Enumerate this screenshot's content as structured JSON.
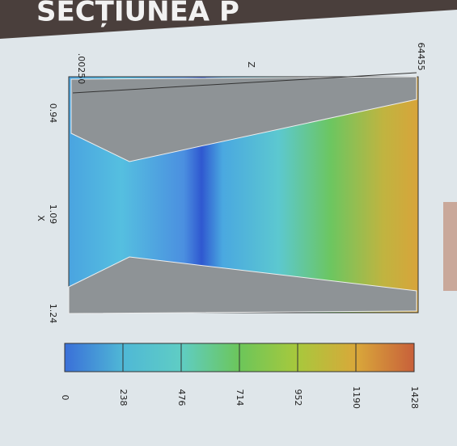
{
  "title": "SECȚIUNEA P",
  "plot": {
    "x_axis_label": "X",
    "z_axis_label": "Z",
    "x_ticks": [
      "0.94",
      "1.09",
      "1.24"
    ],
    "z_start_label": ".00250",
    "z_end_label": "64455"
  },
  "colorbar": {
    "lim": [
      0,
      1428
    ],
    "ticks": [
      0,
      238,
      476,
      714,
      952,
      1190,
      1428
    ],
    "colors": [
      "#3a6fd8",
      "#4fb8d6",
      "#5fcdc4",
      "#6cc65a",
      "#a8c83c",
      "#d9a83a",
      "#c8603a"
    ]
  }
}
